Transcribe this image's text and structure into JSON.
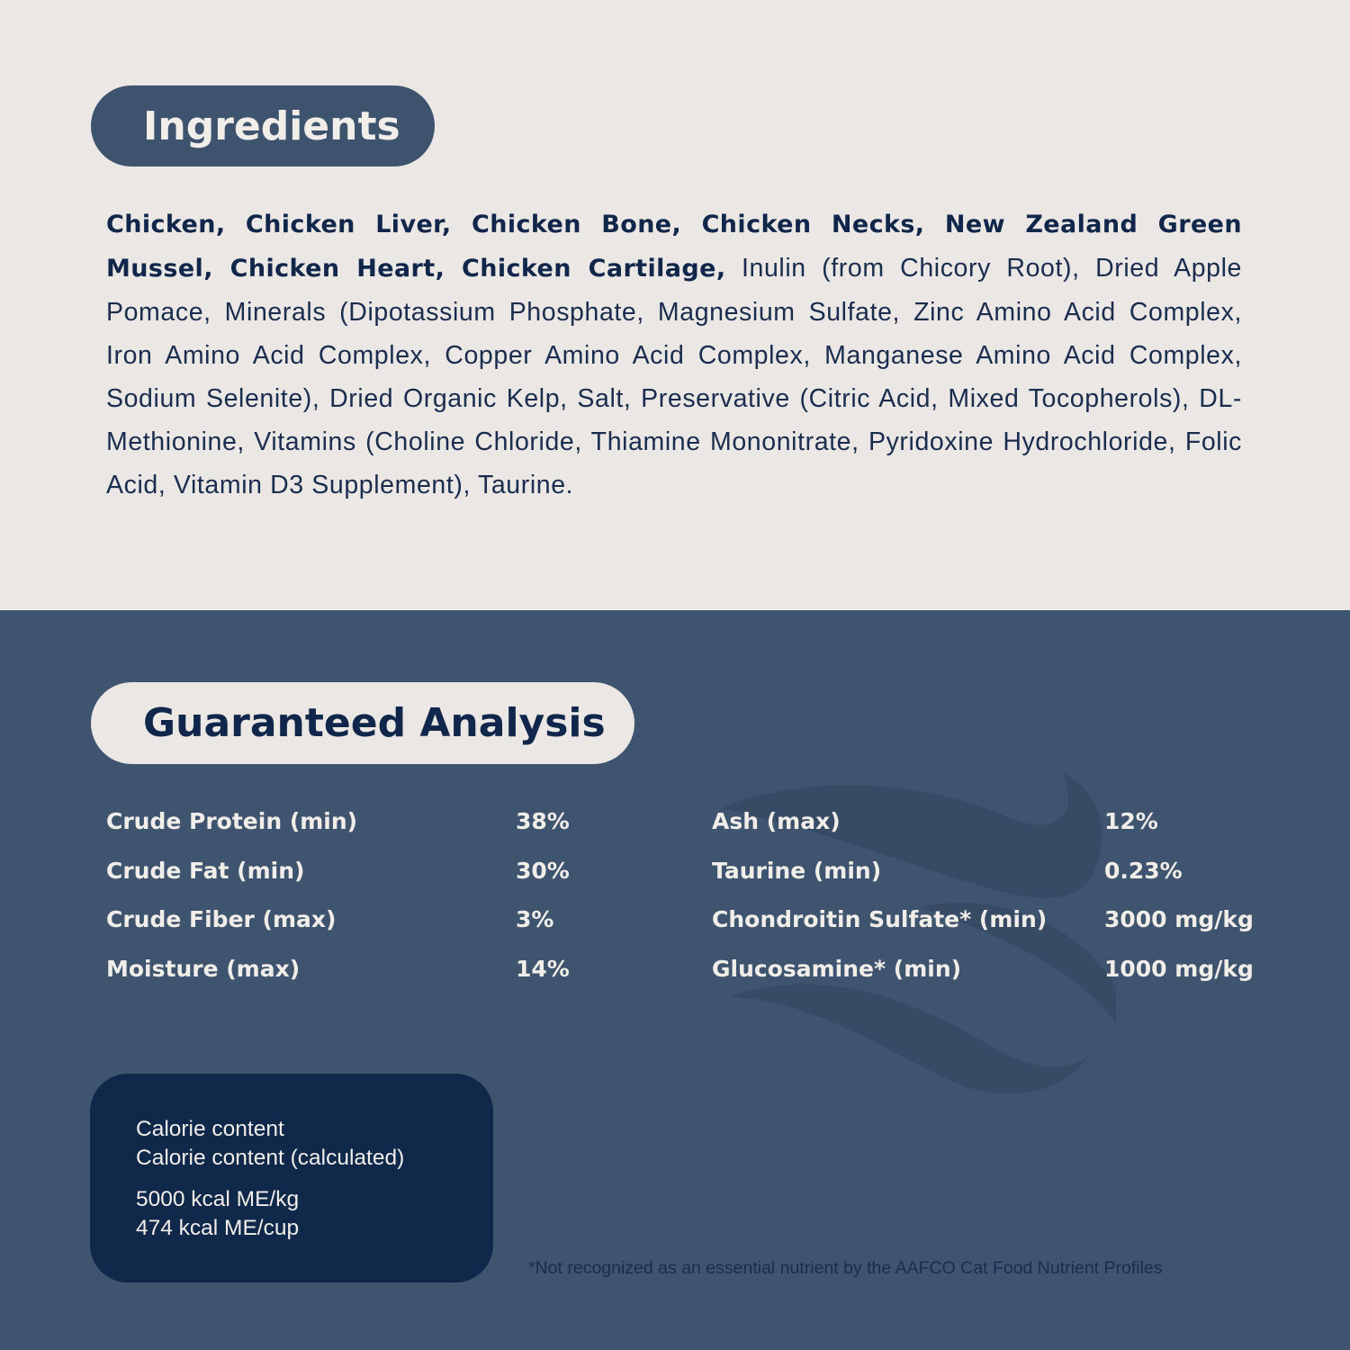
{
  "ingredients": {
    "title": "Ingredients",
    "bold_text": "Chicken, Chicken Liver, Chicken Bone, Chicken Necks, New Zealand Green Mussel, Chicken Heart, Chicken Cartilage,",
    "regular_text": " Inulin (from Chicory Root), Dried Apple Pomace, Minerals (Dipotassium Phosphate, Magnesium Sulfate, Zinc Amino Acid Complex, Iron Amino Acid Complex, Copper Amino Acid Complex, Manganese Amino Acid Complex, Sodium Selenite), Dried Organic Kelp, Salt, Preservative (Citric Acid, Mixed Tocopherols), DL-Methionine, Vitamins (Choline Chloride, Thiamine Mononitrate, Pyridoxine Hydrochloride, Folic Acid, Vitamin D3 Supplement), Taurine."
  },
  "analysis": {
    "title": "Guaranteed Analysis",
    "left": [
      {
        "label": "Crude Protein (min)",
        "value": "38%"
      },
      {
        "label": "Crude Fat (min)",
        "value": "30%"
      },
      {
        "label": "Crude Fiber (max)",
        "value": "3%"
      },
      {
        "label": "Moisture (max)",
        "value": "14%"
      }
    ],
    "right": [
      {
        "label": "Ash (max)",
        "value": "12%"
      },
      {
        "label": "Taurine (min)",
        "value": "0.23%"
      },
      {
        "label": "Chondroitin Sulfate* (min)",
        "value": "3000 mg/kg"
      },
      {
        "label": "Glucosamine* (min)",
        "value": "1000 mg/kg"
      }
    ]
  },
  "calories": {
    "line1": "Calorie content",
    "line2": "Calorie content (calculated)",
    "value1": "5000 kcal ME/kg",
    "value2": "474 kcal ME/cup"
  },
  "footnote": "*Not recognized as an essential nutrient by the AAFCO Cat Food Nutrient Profiles",
  "colors": {
    "cream": "#ebe7e4",
    "slate_blue": "#3e546f",
    "navy": "#10284a",
    "wave_watermark": "#374b65"
  },
  "icons": [
    "wave-watermark-icon"
  ]
}
